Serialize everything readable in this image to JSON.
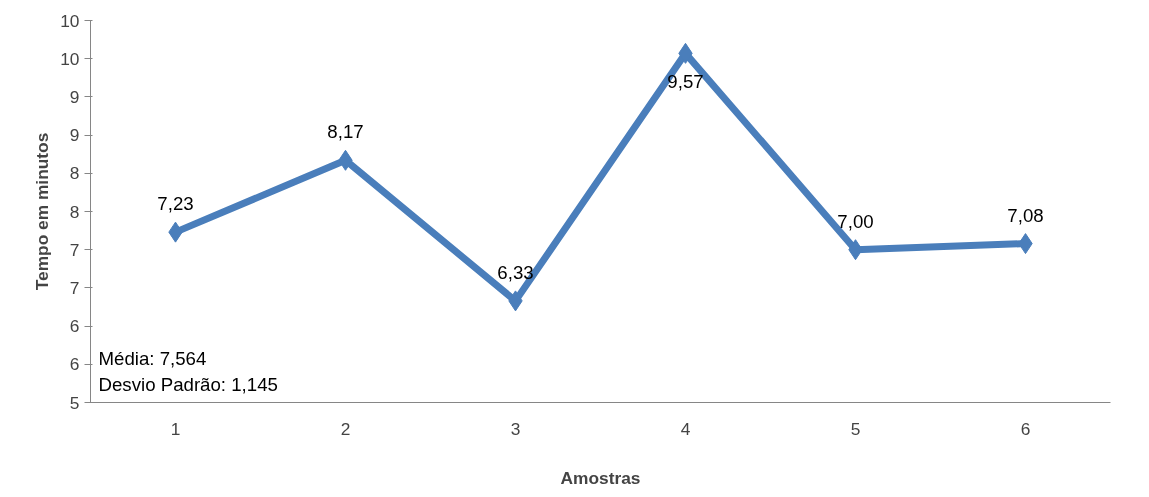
{
  "chart_data": {
    "type": "line",
    "xlabel": "Amostras",
    "ylabel": "Tempo em minutos",
    "categories": [
      "1",
      "2",
      "3",
      "4",
      "5",
      "6"
    ],
    "series": [
      {
        "color": "#4a7ebb",
        "values": [
          7.23,
          8.17,
          6.33,
          9.57,
          7.0,
          7.08
        ],
        "value_labels": [
          "7,23",
          "8,17",
          "6,33",
          "9,57",
          "7,00",
          "7,08"
        ]
      }
    ],
    "ylim": [
      5,
      10
    ],
    "yticks": [
      5,
      {
        "value": 5.5,
        "label": "6"
      },
      6,
      {
        "value": 6.5,
        "label": "7"
      },
      7,
      {
        "value": 7.5,
        "label": "8"
      },
      8,
      {
        "value": 8.5,
        "label": "9"
      },
      9,
      {
        "value": 9.5,
        "label": "10"
      },
      10
    ],
    "annotations": [
      "Média: 7,564",
      "Desvio Padrão: 1,145"
    ],
    "grid": false,
    "marker": "diamond",
    "line_style": "solid"
  }
}
